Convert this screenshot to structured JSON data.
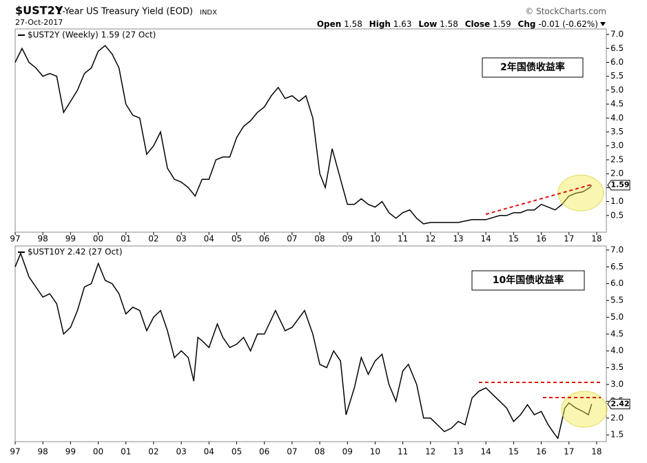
{
  "header": {
    "symbol": "$UST2Y",
    "name": "2-Year US Treasury Yield (EOD)",
    "exchange": "INDX",
    "date": "27-Oct-2017",
    "source": "© StockCharts.com",
    "quote": [
      {
        "label": "Open",
        "value": 1.58
      },
      {
        "label": "High",
        "value": 1.63
      },
      {
        "label": "Low",
        "value": 1.58
      },
      {
        "label": "Close",
        "value": 1.59
      },
      {
        "label": "Chg",
        "value": "-0.01 (-0.62%)"
      }
    ]
  },
  "chart_data": [
    {
      "type": "line",
      "annotation": "2年国债收益率",
      "x": [
        1997.0,
        1997.25,
        1997.5,
        1997.75,
        1998.0,
        1998.25,
        1998.5,
        1998.75,
        1999.0,
        1999.25,
        1999.5,
        1999.75,
        2000.0,
        2000.25,
        2000.5,
        2000.75,
        2001.0,
        2001.25,
        2001.5,
        2001.75,
        2002.0,
        2002.25,
        2002.5,
        2002.75,
        2003.0,
        2003.25,
        2003.5,
        2003.75,
        2004.0,
        2004.25,
        2004.5,
        2004.75,
        2005.0,
        2005.25,
        2005.5,
        2005.75,
        2006.0,
        2006.25,
        2006.5,
        2006.75,
        2007.0,
        2007.25,
        2007.5,
        2007.75,
        2008.0,
        2008.2,
        2008.45,
        2008.75,
        2009.0,
        2009.25,
        2009.5,
        2009.75,
        2010.0,
        2010.25,
        2010.5,
        2010.75,
        2011.0,
        2011.25,
        2011.5,
        2011.75,
        2012.0,
        2012.5,
        2013.0,
        2013.5,
        2013.75,
        2014.0,
        2014.5,
        2014.75,
        2015.0,
        2015.25,
        2015.5,
        2015.75,
        2016.0,
        2016.25,
        2016.5,
        2016.75,
        2017.0,
        2017.25,
        2017.5,
        2017.75,
        2017.82
      ],
      "series": [
        {
          "name": "$UST2Y (Weekly) 1.59 (27 Oct)",
          "color": "#000000",
          "values": [
            6.0,
            6.5,
            6.0,
            5.8,
            5.5,
            5.6,
            5.5,
            4.2,
            4.6,
            5.0,
            5.6,
            5.8,
            6.4,
            6.6,
            6.3,
            5.8,
            4.5,
            4.1,
            4.0,
            2.7,
            3.0,
            3.5,
            2.2,
            1.8,
            1.7,
            1.5,
            1.2,
            1.8,
            1.8,
            2.5,
            2.6,
            2.6,
            3.3,
            3.7,
            3.9,
            4.2,
            4.4,
            4.8,
            5.1,
            4.7,
            4.8,
            4.6,
            4.8,
            4.0,
            2.0,
            1.5,
            2.9,
            1.8,
            0.9,
            0.9,
            1.1,
            0.9,
            0.8,
            1.0,
            0.6,
            0.4,
            0.6,
            0.7,
            0.4,
            0.2,
            0.25,
            0.25,
            0.25,
            0.35,
            0.35,
            0.35,
            0.5,
            0.5,
            0.6,
            0.6,
            0.7,
            0.7,
            0.9,
            0.8,
            0.7,
            0.9,
            1.2,
            1.3,
            1.35,
            1.5,
            1.59
          ]
        }
      ],
      "xlim": [
        1997.0,
        2018.35
      ],
      "xticks": [
        {
          "value": 1997,
          "label": "97"
        },
        {
          "value": 1998,
          "label": "98"
        },
        {
          "value": 1999,
          "label": "99"
        },
        {
          "value": 2000,
          "label": "00"
        },
        {
          "value": 2001,
          "label": "01"
        },
        {
          "value": 2002,
          "label": "02"
        },
        {
          "value": 2003,
          "label": "03"
        },
        {
          "value": 2004,
          "label": "04"
        },
        {
          "value": 2005,
          "label": "05"
        },
        {
          "value": 2006,
          "label": "06"
        },
        {
          "value": 2007,
          "label": "07"
        },
        {
          "value": 2008,
          "label": "08"
        },
        {
          "value": 2009,
          "label": "09"
        },
        {
          "value": 2010,
          "label": "10"
        },
        {
          "value": 2011,
          "label": "11"
        },
        {
          "value": 2012,
          "label": "12"
        },
        {
          "value": 2013,
          "label": "13"
        },
        {
          "value": 2014,
          "label": "14"
        },
        {
          "value": 2015,
          "label": "15"
        },
        {
          "value": 2016,
          "label": "16"
        },
        {
          "value": 2017,
          "label": "17"
        },
        {
          "value": 2018,
          "label": "18"
        }
      ],
      "ylim": [
        -0.1,
        7.2
      ],
      "yticks": [
        0.5,
        {
          "value": 1,
          "label": "1.0"
        },
        1.5,
        {
          "value": 2,
          "label": "2.0"
        },
        2.5,
        {
          "value": 3,
          "label": "3.0"
        },
        3.5,
        {
          "value": 4,
          "label": "4.0"
        },
        4.5,
        {
          "value": 5,
          "label": "5.0"
        },
        5.5,
        {
          "value": 6,
          "label": "6.0"
        },
        6.5,
        {
          "value": 7,
          "label": "7.0"
        }
      ],
      "grid": false
    },
    {
      "type": "line",
      "annotation": "10年国债收益率",
      "x": [
        1997.0,
        1997.2,
        1997.5,
        1997.75,
        1998.0,
        1998.25,
        1998.5,
        1998.75,
        1999.0,
        1999.25,
        1999.5,
        1999.75,
        2000.0,
        2000.25,
        2000.5,
        2000.75,
        2001.0,
        2001.25,
        2001.5,
        2001.75,
        2002.0,
        2002.25,
        2002.5,
        2002.75,
        2003.0,
        2003.25,
        2003.45,
        2003.6,
        2003.75,
        2004.0,
        2004.3,
        2004.5,
        2004.75,
        2005.0,
        2005.25,
        2005.5,
        2005.75,
        2006.0,
        2006.4,
        2006.75,
        2007.0,
        2007.45,
        2007.75,
        2008.0,
        2008.25,
        2008.5,
        2008.75,
        2008.95,
        2009.25,
        2009.5,
        2009.75,
        2010.0,
        2010.25,
        2010.5,
        2010.75,
        2011.0,
        2011.2,
        2011.5,
        2011.75,
        2012.0,
        2012.5,
        2012.75,
        2013.0,
        2013.25,
        2013.5,
        2013.75,
        2014.0,
        2014.25,
        2014.5,
        2014.75,
        2015.0,
        2015.25,
        2015.5,
        2015.75,
        2016.0,
        2016.25,
        2016.5,
        2016.6,
        2016.85,
        2017.0,
        2017.25,
        2017.5,
        2017.7,
        2017.82
      ],
      "series": [
        {
          "name": "$UST10Y 2.42 (27 Oct)",
          "color": "#000000",
          "values": [
            6.5,
            6.9,
            6.2,
            5.9,
            5.6,
            5.7,
            5.4,
            4.5,
            4.7,
            5.2,
            5.9,
            6.0,
            6.6,
            6.1,
            6.0,
            5.7,
            5.1,
            5.3,
            5.2,
            4.6,
            5.0,
            5.2,
            4.6,
            3.8,
            4.0,
            3.8,
            3.1,
            4.4,
            4.3,
            4.1,
            4.8,
            4.4,
            4.1,
            4.2,
            4.4,
            4.0,
            4.5,
            4.5,
            5.2,
            4.6,
            4.7,
            5.2,
            4.5,
            3.6,
            3.5,
            4.0,
            3.7,
            2.1,
            2.9,
            3.8,
            3.3,
            3.7,
            3.9,
            3.0,
            2.5,
            3.4,
            3.6,
            3.0,
            2.0,
            2.0,
            1.6,
            1.7,
            1.9,
            1.8,
            2.6,
            2.8,
            2.9,
            2.7,
            2.5,
            2.3,
            1.9,
            2.1,
            2.4,
            2.1,
            2.2,
            1.8,
            1.5,
            1.4,
            2.3,
            2.45,
            2.3,
            2.2,
            2.1,
            2.42
          ]
        }
      ],
      "xlim": [
        1997.0,
        2018.35
      ],
      "xticks": [
        {
          "value": 1997,
          "label": "97"
        },
        {
          "value": 1998,
          "label": "98"
        },
        {
          "value": 1999,
          "label": "99"
        },
        {
          "value": 2000,
          "label": "00"
        },
        {
          "value": 2001,
          "label": "01"
        },
        {
          "value": 2002,
          "label": "02"
        },
        {
          "value": 2003,
          "label": "03"
        },
        {
          "value": 2004,
          "label": "04"
        },
        {
          "value": 2005,
          "label": "05"
        },
        {
          "value": 2006,
          "label": "06"
        },
        {
          "value": 2007,
          "label": "07"
        },
        {
          "value": 2008,
          "label": "08"
        },
        {
          "value": 2009,
          "label": "09"
        },
        {
          "value": 2010,
          "label": "10"
        },
        {
          "value": 2011,
          "label": "11"
        },
        {
          "value": 2012,
          "label": "12"
        },
        {
          "value": 2013,
          "label": "13"
        },
        {
          "value": 2014,
          "label": "14"
        },
        {
          "value": 2015,
          "label": "15"
        },
        {
          "value": 2016,
          "label": "16"
        },
        {
          "value": 2017,
          "label": "17"
        },
        {
          "value": 2018,
          "label": "18"
        }
      ],
      "ylim": [
        1.3,
        7.12
      ],
      "yticks": [
        1.5,
        {
          "value": 2,
          "label": "2.0"
        },
        2.5,
        {
          "value": 3,
          "label": "3.0"
        },
        3.5,
        {
          "value": 4,
          "label": "4.0"
        },
        4.5,
        {
          "value": 5,
          "label": "5.0"
        },
        5.5,
        {
          "value": 6,
          "label": "6.0"
        },
        6.5,
        {
          "value": 7,
          "label": "7.0"
        }
      ],
      "grid": false
    }
  ]
}
